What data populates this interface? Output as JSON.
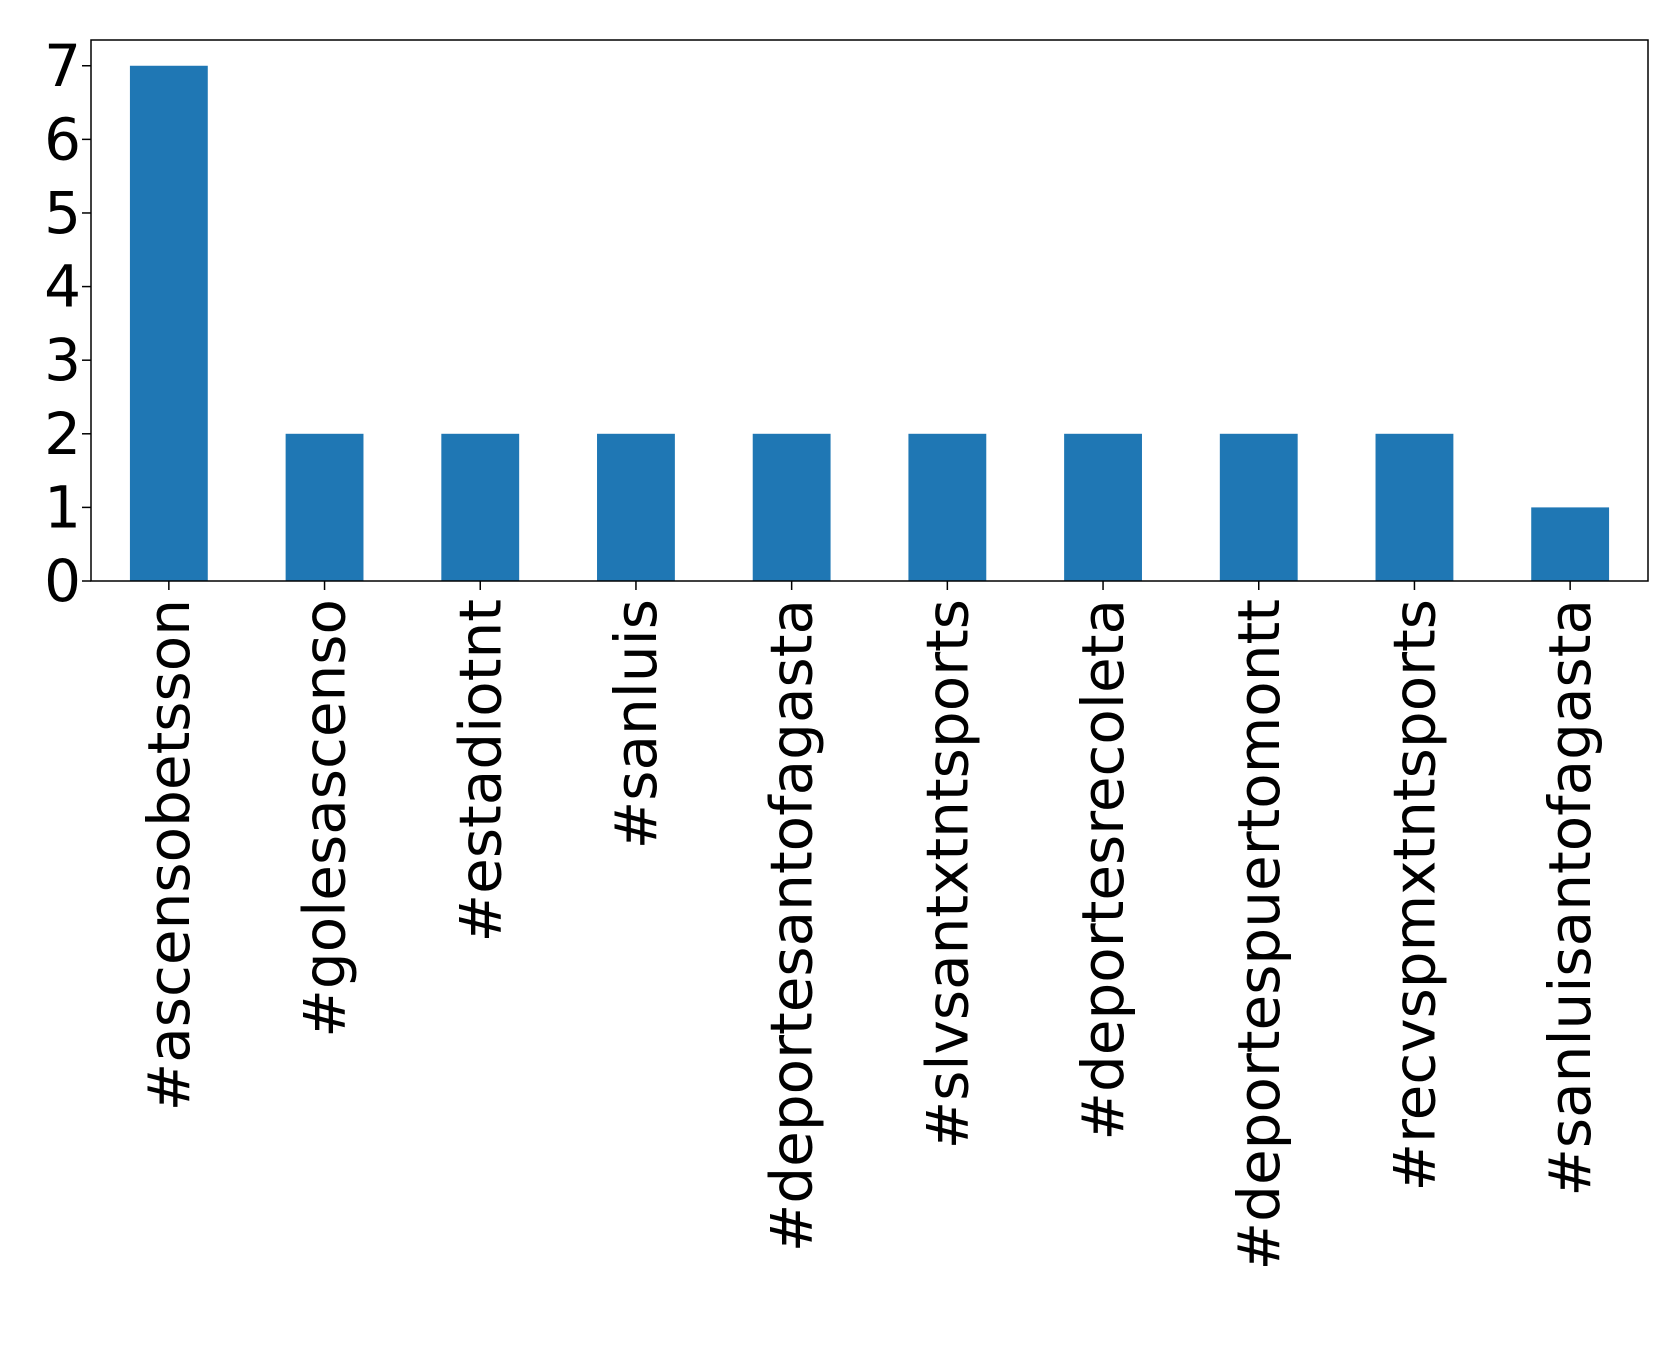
{
  "chart_data": {
    "type": "bar",
    "title": "",
    "xlabel": "",
    "ylabel": "",
    "categories": [
      "#ascensobetsson",
      "#golesascenso",
      "#estadiotnt",
      "#sanluis",
      "#deportesantofagasta",
      "#slvsantxtntsports",
      "#deportesrecoleta",
      "#deportespuertomontt",
      "#recvspmxtntsports",
      "#sanluisantofagasta"
    ],
    "values": [
      7,
      2,
      2,
      2,
      2,
      2,
      2,
      2,
      2,
      1
    ],
    "yticks": [
      "0",
      "1",
      "2",
      "3",
      "4",
      "5",
      "6",
      "7"
    ],
    "ylim": [
      0,
      7.35
    ],
    "bar_color": "#1f77b4",
    "grid": false,
    "legend": "none"
  }
}
